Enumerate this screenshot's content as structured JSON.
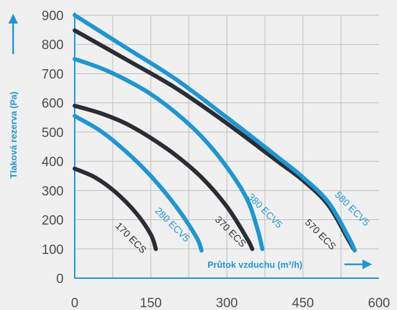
{
  "chart_data": {
    "type": "line",
    "xlabel": "Průtok vzduchu (m³/h)",
    "ylabel": "Tlaková rezerva (Pa)",
    "xlim": [
      0,
      600
    ],
    "ylim": [
      0,
      900
    ],
    "x_ticks": [
      "0",
      "150",
      "300",
      "450",
      "600"
    ],
    "y_ticks": [
      "0",
      "100",
      "200",
      "300",
      "400",
      "500",
      "600",
      "700",
      "800",
      "900"
    ],
    "grid": true,
    "colors": {
      "dark": "#2a2d33",
      "blue": "#1e96d2",
      "axis": "#1e96d2",
      "grid": "#bdbdbd"
    },
    "series": [
      {
        "name": "170 ECS",
        "color": "#2a2d33",
        "points": [
          [
            0,
            375
          ],
          [
            40,
            345
          ],
          [
            80,
            295
          ],
          [
            120,
            225
          ],
          [
            150,
            150
          ],
          [
            160,
            100
          ]
        ]
      },
      {
        "name": "280 ECV5",
        "color": "#1e96d2",
        "points": [
          [
            0,
            555
          ],
          [
            50,
            505
          ],
          [
            100,
            435
          ],
          [
            150,
            350
          ],
          [
            200,
            245
          ],
          [
            240,
            140
          ],
          [
            250,
            95
          ]
        ]
      },
      {
        "name": "370 ECS",
        "color": "#2a2d33",
        "points": [
          [
            0,
            590
          ],
          [
            50,
            565
          ],
          [
            100,
            530
          ],
          [
            150,
            480
          ],
          [
            200,
            420
          ],
          [
            250,
            345
          ],
          [
            300,
            245
          ],
          [
            340,
            135
          ],
          [
            350,
            100
          ]
        ]
      },
      {
        "name": "380 ECV5",
        "color": "#1e96d2",
        "points": [
          [
            0,
            750
          ],
          [
            50,
            720
          ],
          [
            100,
            680
          ],
          [
            150,
            630
          ],
          [
            200,
            565
          ],
          [
            250,
            485
          ],
          [
            300,
            380
          ],
          [
            340,
            270
          ],
          [
            360,
            170
          ],
          [
            370,
            100
          ]
        ]
      },
      {
        "name": "570 ECS",
        "color": "#2a2d33",
        "points": [
          [
            0,
            848
          ],
          [
            100,
            750
          ],
          [
            200,
            650
          ],
          [
            300,
            530
          ],
          [
            400,
            400
          ],
          [
            450,
            335
          ],
          [
            500,
            250
          ],
          [
            540,
            130
          ],
          [
            550,
            100
          ]
        ]
      },
      {
        "name": "580 ECV5",
        "color": "#1e96d2",
        "points": [
          [
            0,
            900
          ],
          [
            100,
            790
          ],
          [
            200,
            680
          ],
          [
            300,
            550
          ],
          [
            400,
            415
          ],
          [
            450,
            345
          ],
          [
            500,
            260
          ],
          [
            540,
            140
          ],
          [
            552,
            95
          ]
        ]
      }
    ]
  }
}
